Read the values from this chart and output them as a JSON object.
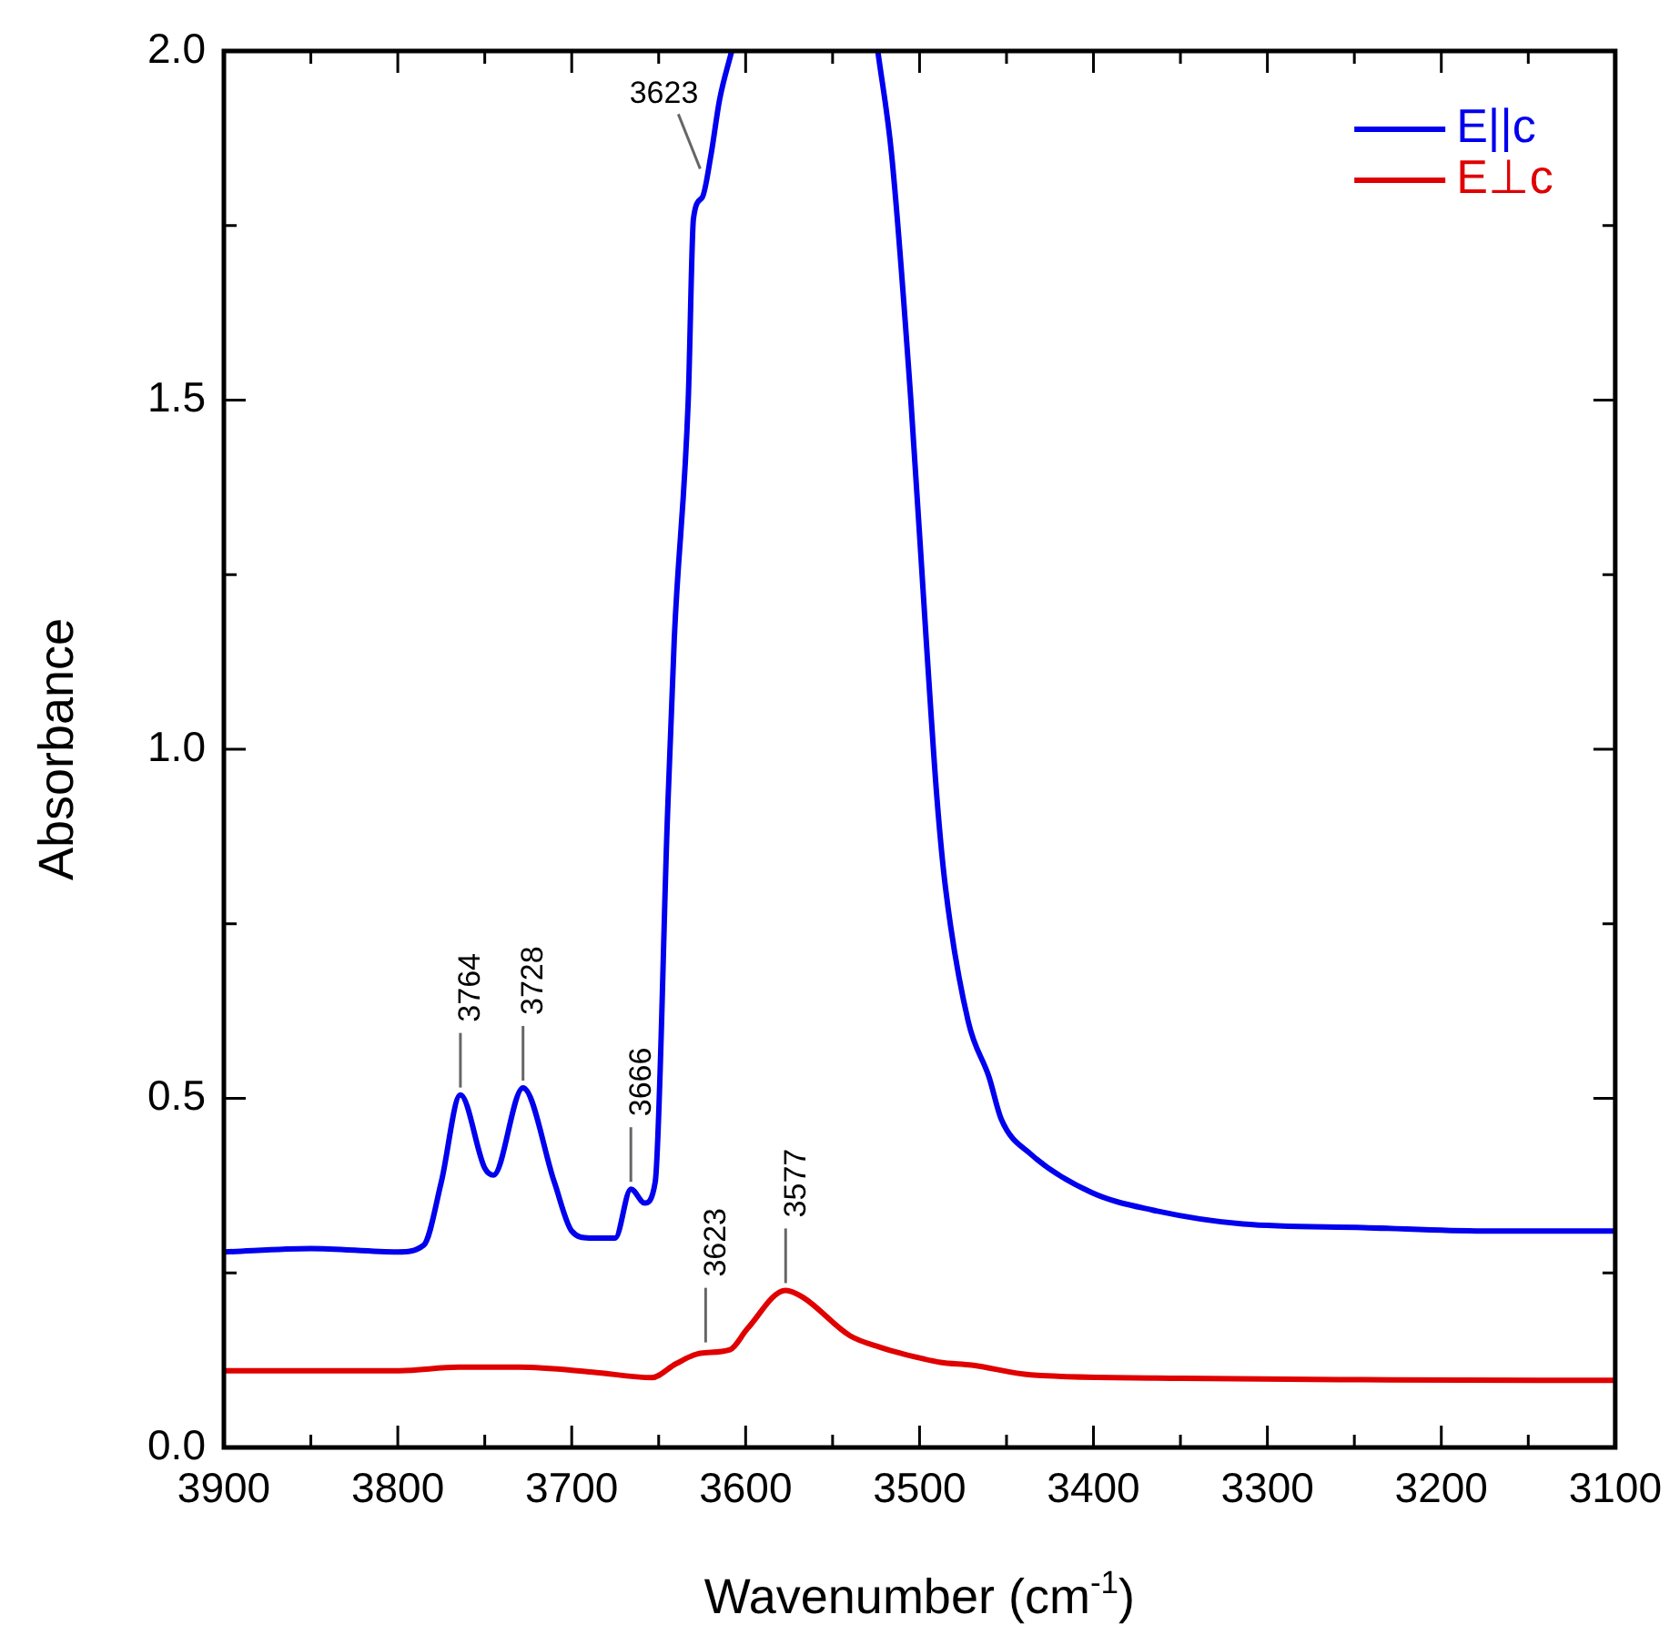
{
  "chart_data": {
    "type": "line",
    "xlabel": "Wavenumber (cm$^{-1}$)",
    "ylabel": "Absorbance",
    "xlim": [
      3900,
      3100
    ],
    "xticks": [
      3900,
      {
        "value": 3850,
        "label": null
      },
      3800,
      {
        "value": 3750,
        "label": null
      },
      3700,
      {
        "value": 3650,
        "label": null
      },
      3600,
      {
        "value": 3550,
        "label": null
      },
      3500,
      {
        "value": 3450,
        "label": null
      },
      3400,
      {
        "value": 3350,
        "label": null
      },
      3300,
      {
        "value": 3250,
        "label": null
      },
      3200,
      {
        "value": 3150,
        "label": null
      },
      3100
    ],
    "ylim": [
      0,
      2
    ],
    "yticks": [
      {
        "value": 0,
        "label": "0.0"
      },
      {
        "value": 0.25,
        "label": null
      },
      0.5,
      {
        "value": 0.75,
        "label": null
      },
      {
        "value": 1,
        "label": "1.0"
      },
      {
        "value": 1.25,
        "label": null
      },
      1.5,
      {
        "value": 1.75,
        "label": null
      },
      {
        "value": 2,
        "label": "2.0"
      }
    ],
    "grid": false,
    "legend": "top right",
    "marker": "none",
    "line_style": "solid",
    "series": [
      {
        "name": "E||c",
        "color": "#0000ee",
        "x": [
          3900,
          3850,
          3800,
          3785,
          3775,
          3764,
          3750,
          3745,
          3728,
          3710,
          3700,
          3690,
          3675,
          3666,
          3658,
          3652,
          3645,
          3641,
          3633,
          3630,
          3625,
          3620,
          3615,
          3608,
          3600,
          3530,
          3524,
          3516,
          3505,
          3496,
          3490,
          3485,
          3472,
          3460,
          3453,
          3436,
          3401,
          3366,
          3314,
          3245,
          3176,
          3100
        ],
        "values": [
          0.28,
          0.285,
          0.28,
          0.29,
          0.38,
          0.505,
          0.4,
          0.39,
          0.515,
          0.38,
          0.31,
          0.3,
          0.3,
          0.37,
          0.35,
          0.38,
          0.9,
          1.16,
          1.5,
          1.76,
          1.79,
          1.85,
          1.93,
          2.0,
          null,
          null,
          2.0,
          1.85,
          1.5,
          1.15,
          0.93,
          0.8,
          0.61,
          0.53,
          0.47,
          0.42,
          0.365,
          0.34,
          0.32,
          0.315,
          0.31,
          0.31
        ]
      },
      {
        "name": "E⊥c",
        "color": "#e00000",
        "x": [
          3900,
          3799,
          3765,
          3730,
          3688,
          3654,
          3640,
          3626,
          3609,
          3599,
          3577,
          3567,
          3540,
          3522,
          3511,
          3488,
          3470,
          3436,
          3349,
          3245,
          3100
        ],
        "values": [
          0.11,
          0.11,
          0.115,
          0.115,
          0.108,
          0.1,
          0.12,
          0.135,
          0.14,
          0.17,
          0.225,
          0.215,
          0.16,
          0.143,
          0.135,
          0.122,
          0.118,
          0.104,
          0.099,
          0.097,
          0.096
        ]
      }
    ],
    "annotations": [
      {
        "text": "3764",
        "x": 3764,
        "y": 0.505
      },
      {
        "text": "3728",
        "x": 3728,
        "y": 0.515
      },
      {
        "text": "3666",
        "x": 3666,
        "y": 0.37
      },
      {
        "text": "3623",
        "x": 3623,
        "y": 0.14
      },
      {
        "text": "3577",
        "x": 3577,
        "y": 0.225
      },
      {
        "text": "3623",
        "x": 3623,
        "y": 1.8
      }
    ]
  }
}
